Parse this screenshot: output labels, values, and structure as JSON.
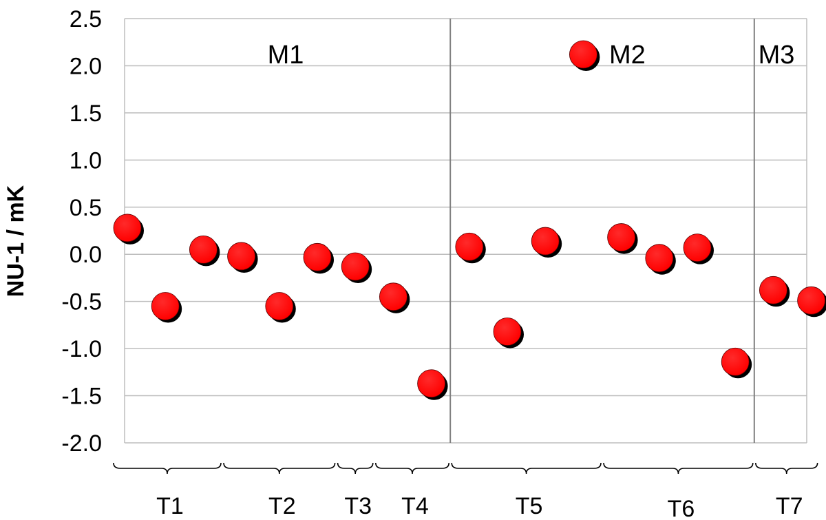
{
  "chart_data": {
    "type": "scatter",
    "ylabel": "NU-1 / mK",
    "ylim": [
      -2.0,
      2.5
    ],
    "yticks": [
      "-2.0",
      "-1.5",
      "-1.0",
      "-0.5",
      "0.0",
      "0.5",
      "1.0",
      "1.5",
      "2.0",
      "2.5"
    ],
    "grid": true,
    "marker_color": "#ff0000",
    "x": [
      1,
      2,
      3,
      4,
      5,
      6,
      7,
      8,
      9,
      10,
      11,
      12,
      13,
      14,
      15,
      16,
      17,
      18,
      19
    ],
    "values": [
      0.28,
      -0.55,
      0.05,
      -0.02,
      -0.55,
      -0.03,
      -0.13,
      -0.45,
      -1.37,
      0.08,
      -0.82,
      0.14,
      2.12,
      0.18,
      -0.04,
      0.07,
      -1.14,
      -0.38,
      -0.49
    ],
    "regions": [
      {
        "label": "M1",
        "x_range": [
          1,
          9.5
        ]
      },
      {
        "label": "M2",
        "x_range": [
          9.5,
          17.5
        ]
      },
      {
        "label": "M3",
        "x_range": [
          17.5,
          19
        ]
      }
    ],
    "groups": [
      {
        "label": "T1",
        "x_range": [
          0.6,
          3.5
        ]
      },
      {
        "label": "T2",
        "x_range": [
          3.5,
          6.5
        ]
      },
      {
        "label": "T3",
        "x_range": [
          6.5,
          7.5
        ]
      },
      {
        "label": "T4",
        "x_range": [
          7.5,
          9.5
        ]
      },
      {
        "label": "T5",
        "x_range": [
          9.5,
          13.5
        ]
      },
      {
        "label": "T6",
        "x_range": [
          13.5,
          17.5
        ]
      },
      {
        "label": "T7",
        "x_range": [
          17.5,
          19.2
        ]
      }
    ]
  }
}
